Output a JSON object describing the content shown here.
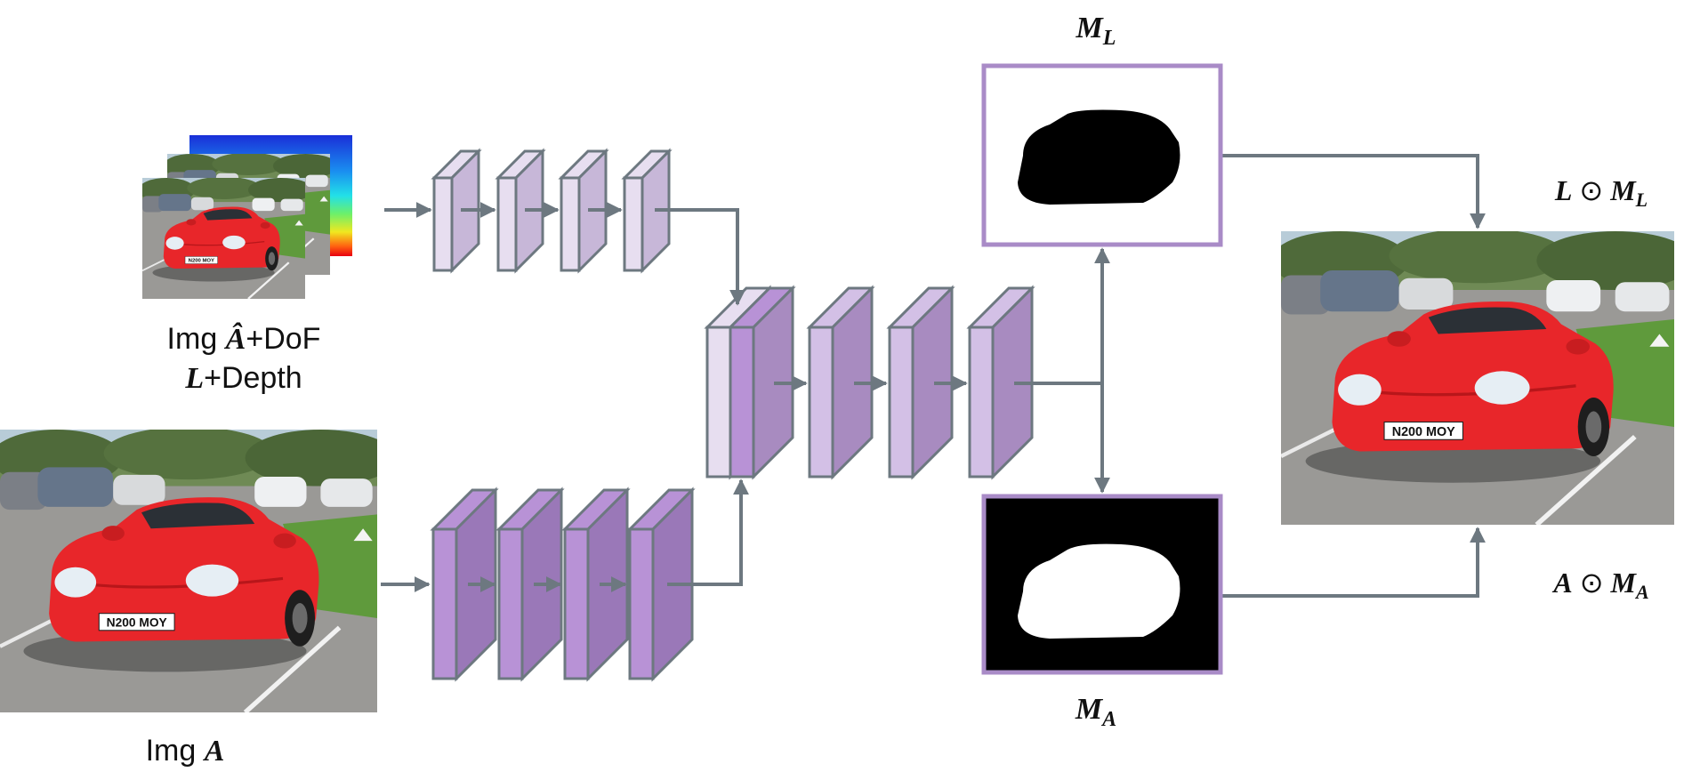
{
  "labels": {
    "img_ahat_prefix": "Img ",
    "img_ahat_math": "Â",
    "img_ahat_suffix": "+DoF",
    "l_math": "L",
    "l_suffix": "+Depth",
    "img_a_prefix": "Img ",
    "img_a_math": "A",
    "ml_main": "M",
    "ml_sub": "L",
    "ma_main": "M",
    "ma_sub": "A",
    "out_top_l": "L",
    "out_top_op": "⊙",
    "out_top_m": "M",
    "out_top_sub": "L",
    "out_bot_a": "A",
    "out_bot_op": "⊙",
    "out_bot_m": "M",
    "out_bot_sub": "A"
  },
  "images": {
    "plate_text": "N200 MOY"
  },
  "colors": {
    "arrow": "#6d7880",
    "mask_border": "#a98bc7",
    "block_light_front": "#e7def0",
    "block_light_side": "#c7b7d8",
    "block_dark_front": "#b892d6",
    "block_dark_side": "#9a78b8",
    "block_mid_front": "#d3c0e6",
    "block_mid_side": "#a88bc0",
    "car_red": "#e8262a"
  }
}
